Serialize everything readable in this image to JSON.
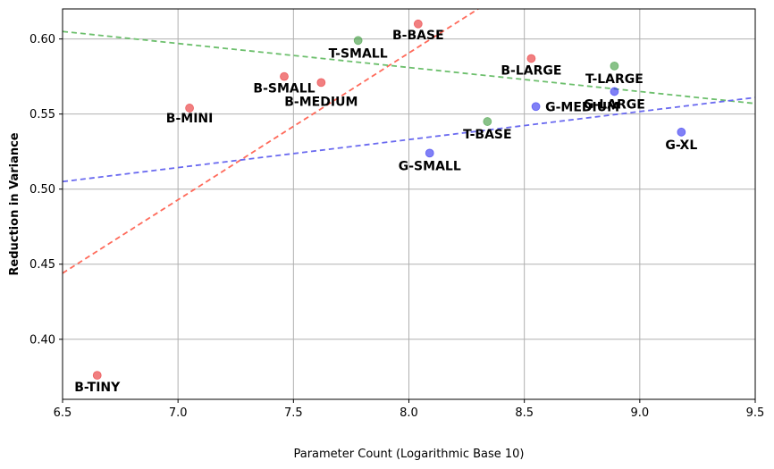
{
  "chart_data": {
    "type": "scatter",
    "title": "",
    "xlabel": "Parameter Count (Logarithmic Base 10)",
    "ylabel": "Reduction in Variance",
    "xlim": [
      6.5,
      9.5
    ],
    "ylim": [
      0.36,
      0.62
    ],
    "x_ticks": [
      6.5,
      7.0,
      7.5,
      8.0,
      8.5,
      9.0,
      9.5
    ],
    "x_tick_labels": [
      "6.5",
      "7.0",
      "7.5",
      "8.0",
      "8.5",
      "9.0",
      "9.5"
    ],
    "y_ticks": [
      0.4,
      0.45,
      0.5,
      0.55,
      0.6
    ],
    "y_tick_labels": [
      "0.40",
      "0.45",
      "0.50",
      "0.55",
      "0.60"
    ],
    "grid": true,
    "colors": {
      "red": "#e8292b",
      "green": "#3a9a3a",
      "blue": "#2b2bf0",
      "red_line": "#ff6a5a",
      "green_line": "#6cbf6c",
      "blue_line": "#6a6af0",
      "grid": "#b0b0b0"
    },
    "series": [
      {
        "color_key": "red",
        "points": [
          {
            "label": "B-TINY",
            "x": 6.65,
            "y": 0.376
          },
          {
            "label": "B-MINI",
            "x": 7.05,
            "y": 0.554
          },
          {
            "label": "B-SMALL",
            "x": 7.46,
            "y": 0.575
          },
          {
            "label": "B-MEDIUM",
            "x": 7.62,
            "y": 0.571
          },
          {
            "label": "B-BASE",
            "x": 8.04,
            "y": 0.61
          },
          {
            "label": "B-LARGE",
            "x": 8.53,
            "y": 0.587
          }
        ],
        "trend": {
          "x0": 6.5,
          "y0": 0.444,
          "x1": 8.3,
          "y1": 0.62
        }
      },
      {
        "color_key": "green",
        "points": [
          {
            "label": "T-SMALL",
            "x": 7.78,
            "y": 0.599
          },
          {
            "label": "T-BASE",
            "x": 8.34,
            "y": 0.545
          },
          {
            "label": "T-LARGE",
            "x": 8.89,
            "y": 0.582
          }
        ],
        "trend": {
          "x0": 6.5,
          "y0": 0.605,
          "x1": 9.5,
          "y1": 0.557
        }
      },
      {
        "color_key": "blue",
        "points": [
          {
            "label": "G-SMALL",
            "x": 8.09,
            "y": 0.524
          },
          {
            "label": "G-MEDIUM",
            "x": 8.55,
            "y": 0.555
          },
          {
            "label": "G-LARGE",
            "x": 8.89,
            "y": 0.565
          },
          {
            "label": "G-XL",
            "x": 9.18,
            "y": 0.538
          }
        ],
        "trend": {
          "x0": 6.5,
          "y0": 0.505,
          "x1": 9.5,
          "y1": 0.561
        }
      }
    ],
    "annotations": [
      {
        "text": "B-TINY",
        "x": 6.75,
        "y": 0.361
      },
      {
        "text": "B-MINI",
        "x": 7.05,
        "y": 0.539
      },
      {
        "text": "B-SMALL",
        "x": 7.46,
        "y": 0.661,
        "note": ""
      },
      {
        "text": "B-MEDIUM",
        "x": 7.62,
        "y": 0.552
      },
      {
        "text": "B-BASE",
        "x": 8.04,
        "y": 0.596
      },
      {
        "text": "B-LARGE",
        "x": 8.53,
        "y": 0.572
      },
      {
        "text": "T-SMALL",
        "x": 7.78,
        "y": 0.584
      },
      {
        "text": "T-BASE",
        "x": 8.34,
        "y": 0.53
      },
      {
        "text": "T-LARGE",
        "x": 8.89,
        "y": 0.567
      },
      {
        "text": "G-SMALL",
        "x": 8.09,
        "y": 0.509
      },
      {
        "text": "G-MEDIUM",
        "x": 8.55,
        "y": 0.545
      },
      {
        "text": "G-LARGE",
        "x": 8.89,
        "y": 0.55
      },
      {
        "text": "G-XL",
        "x": 9.18,
        "y": 0.523
      }
    ]
  }
}
